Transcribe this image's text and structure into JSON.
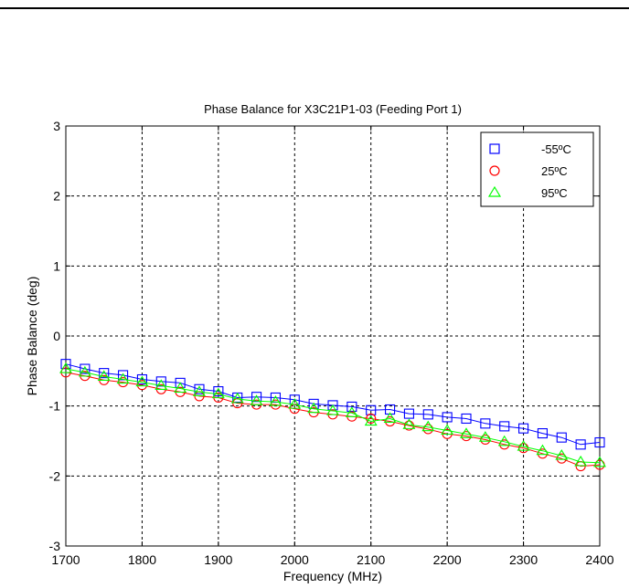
{
  "chart_data": {
    "type": "line",
    "title": "Phase Balance for X3C21P1-03 (Feeding Port 1)",
    "xlabel": "Frequency (MHz)",
    "ylabel": "Phase Balance (deg)",
    "xlim": [
      1700,
      2400
    ],
    "ylim": [
      -3,
      3
    ],
    "x_ticks": [
      1700,
      1800,
      1900,
      2000,
      2100,
      2200,
      2300,
      2400
    ],
    "y_ticks": [
      -3,
      -2,
      -1,
      0,
      1,
      2,
      3
    ],
    "grid": true,
    "legend_position": "top-right",
    "x": [
      1700,
      1725,
      1750,
      1775,
      1800,
      1825,
      1850,
      1875,
      1900,
      1925,
      1950,
      1975,
      2000,
      2025,
      2050,
      2075,
      2100,
      2125,
      2150,
      2175,
      2200,
      2225,
      2250,
      2275,
      2300,
      2325,
      2350,
      2375,
      2400
    ],
    "series": [
      {
        "name": "-55ºC",
        "color": "#0000ff",
        "marker": "square",
        "values": [
          -0.4,
          -0.47,
          -0.53,
          -0.56,
          -0.62,
          -0.65,
          -0.67,
          -0.76,
          -0.79,
          -0.88,
          -0.87,
          -0.88,
          -0.91,
          -0.97,
          -0.99,
          -1.01,
          -1.06,
          -1.05,
          -1.11,
          -1.12,
          -1.16,
          -1.18,
          -1.25,
          -1.29,
          -1.32,
          -1.39,
          -1.45,
          -1.55,
          -1.52
        ]
      },
      {
        "name": "25ºC",
        "color": "#ff0000",
        "marker": "circle",
        "values": [
          -0.52,
          -0.57,
          -0.63,
          -0.66,
          -0.7,
          -0.76,
          -0.8,
          -0.86,
          -0.88,
          -0.96,
          -0.98,
          -0.98,
          -1.04,
          -1.09,
          -1.12,
          -1.15,
          -1.18,
          -1.22,
          -1.28,
          -1.33,
          -1.4,
          -1.43,
          -1.48,
          -1.55,
          -1.6,
          -1.68,
          -1.75,
          -1.86,
          -1.84
        ]
      },
      {
        "name": "95ºC",
        "color": "#00ff00",
        "marker": "triangle",
        "values": [
          -0.47,
          -0.52,
          -0.58,
          -0.62,
          -0.66,
          -0.71,
          -0.75,
          -0.8,
          -0.83,
          -0.9,
          -0.93,
          -0.94,
          -0.98,
          -1.04,
          -1.07,
          -1.1,
          -1.22,
          -1.18,
          -1.27,
          -1.3,
          -1.35,
          -1.4,
          -1.45,
          -1.51,
          -1.58,
          -1.64,
          -1.71,
          -1.8,
          -1.81
        ]
      }
    ]
  }
}
